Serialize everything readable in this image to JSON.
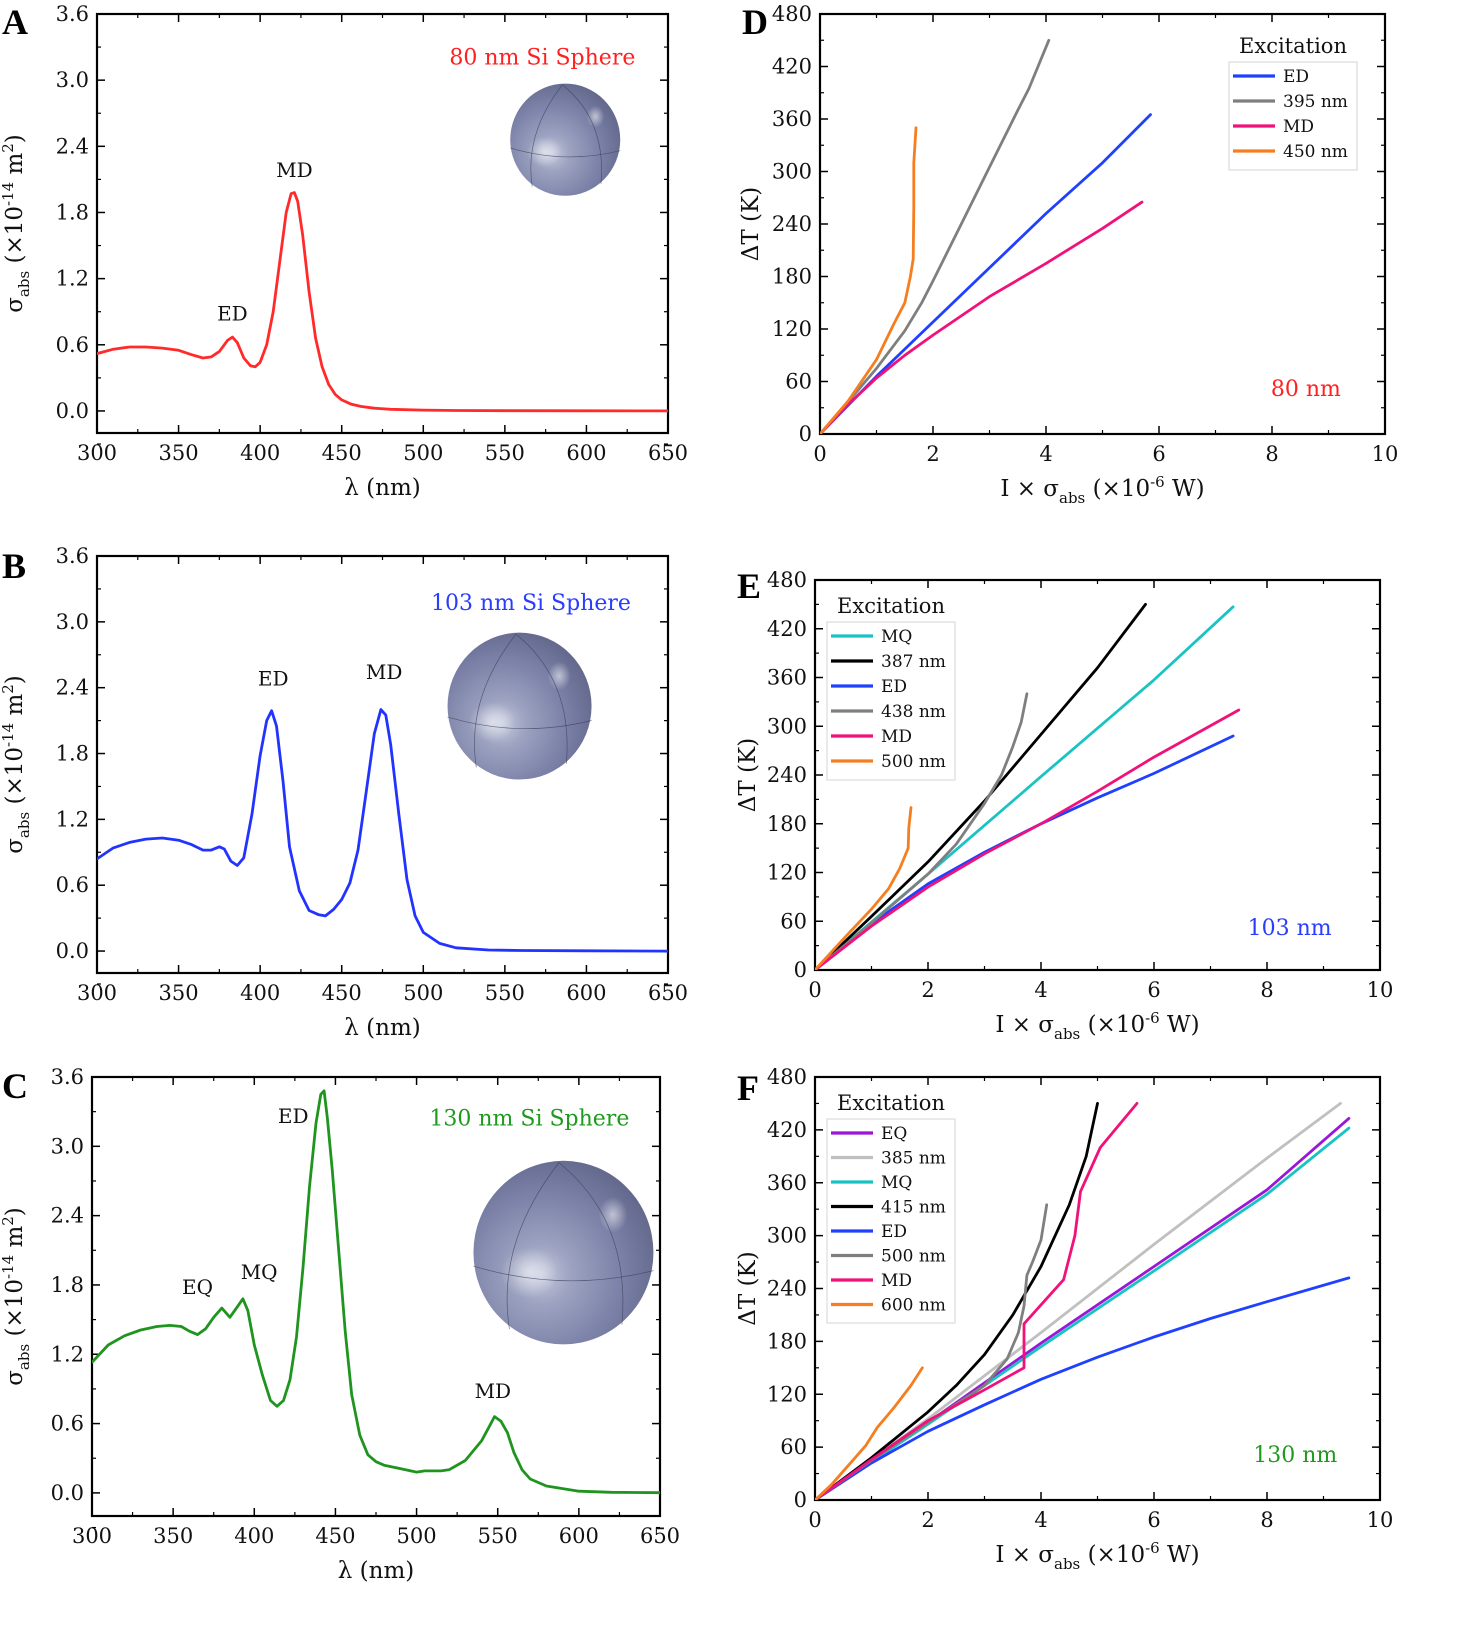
{
  "chart_data": [
    {
      "id": "A",
      "panel_letter": "A",
      "type": "line",
      "title": "80 nm Si Sphere",
      "title_color": "#ff2020",
      "xlabel": "λ (nm)",
      "ylabel": "σ_abs (×10^-14 m^2)",
      "xlim": [
        300,
        650
      ],
      "ylim": [
        -0.2,
        3.6
      ],
      "xticks": [
        300,
        350,
        400,
        450,
        500,
        550,
        600,
        650
      ],
      "yticks": [
        0.0,
        0.6,
        1.2,
        1.8,
        2.4,
        3.0,
        3.6
      ],
      "ytick_format": 1,
      "inset": "sphere",
      "annotations": [
        {
          "text": "ED",
          "x": 383,
          "y": 0.82
        },
        {
          "text": "MD",
          "x": 421,
          "y": 2.12
        }
      ],
      "series": [
        {
          "name": "σ_abs",
          "color": "#ff2a2a",
          "x": [
            300,
            310,
            320,
            330,
            340,
            350,
            358,
            365,
            370,
            375,
            380,
            383,
            386,
            390,
            394,
            397,
            400,
            404,
            408,
            412,
            416,
            419,
            421,
            423,
            426,
            430,
            434,
            438,
            442,
            446,
            450,
            456,
            462,
            470,
            480,
            500,
            520,
            550,
            600,
            650
          ],
          "y": [
            0.52,
            0.56,
            0.58,
            0.58,
            0.57,
            0.55,
            0.51,
            0.48,
            0.49,
            0.54,
            0.64,
            0.67,
            0.62,
            0.48,
            0.41,
            0.4,
            0.44,
            0.6,
            0.9,
            1.35,
            1.8,
            1.97,
            1.98,
            1.9,
            1.6,
            1.08,
            0.66,
            0.4,
            0.24,
            0.15,
            0.1,
            0.06,
            0.04,
            0.025,
            0.015,
            0.008,
            0.004,
            0.002,
            0.001,
            0.0
          ]
        }
      ]
    },
    {
      "id": "B",
      "panel_letter": "B",
      "type": "line",
      "title": "103 nm Si Sphere",
      "title_color": "#2a3cff",
      "xlabel": "λ (nm)",
      "ylabel": "σ_abs (×10^-14 m^2)",
      "xlim": [
        300,
        650
      ],
      "ylim": [
        -0.2,
        3.6
      ],
      "xticks": [
        300,
        350,
        400,
        450,
        500,
        550,
        600,
        650
      ],
      "yticks": [
        0.0,
        0.6,
        1.2,
        1.8,
        2.4,
        3.0,
        3.6
      ],
      "ytick_format": 1,
      "inset": "sphere",
      "annotations": [
        {
          "text": "ED",
          "x": 408,
          "y": 2.42
        },
        {
          "text": "MD",
          "x": 476,
          "y": 2.48
        }
      ],
      "series": [
        {
          "name": "σ_abs",
          "color": "#2233ff",
          "x": [
            300,
            310,
            320,
            330,
            340,
            350,
            358,
            365,
            370,
            375,
            378,
            382,
            386,
            390,
            395,
            400,
            404,
            407,
            410,
            414,
            418,
            424,
            430,
            436,
            440,
            445,
            450,
            455,
            460,
            465,
            470,
            474,
            477,
            480,
            485,
            490,
            495,
            500,
            510,
            520,
            540,
            560,
            600,
            650
          ],
          "y": [
            0.84,
            0.94,
            0.99,
            1.02,
            1.03,
            1.01,
            0.97,
            0.92,
            0.92,
            0.95,
            0.93,
            0.82,
            0.78,
            0.85,
            1.25,
            1.78,
            2.1,
            2.19,
            2.05,
            1.55,
            0.95,
            0.55,
            0.37,
            0.33,
            0.32,
            0.38,
            0.47,
            0.62,
            0.92,
            1.45,
            1.98,
            2.2,
            2.15,
            1.88,
            1.25,
            0.65,
            0.32,
            0.17,
            0.07,
            0.03,
            0.01,
            0.005,
            0.002,
            0.0
          ]
        }
      ]
    },
    {
      "id": "C",
      "panel_letter": "C",
      "type": "line",
      "title": "130 nm Si Sphere",
      "title_color": "#1e9a1e",
      "xlabel": "λ (nm)",
      "ylabel": "σ_abs (×10^-14 m^2)",
      "xlim": [
        300,
        650
      ],
      "ylim": [
        -0.2,
        3.6
      ],
      "xticks": [
        300,
        350,
        400,
        450,
        500,
        550,
        600,
        650
      ],
      "yticks": [
        0.0,
        0.6,
        1.2,
        1.8,
        2.4,
        3.0,
        3.6
      ],
      "ytick_format": 1,
      "inset": "sphere",
      "annotations": [
        {
          "text": "EQ",
          "x": 365,
          "y": 1.72
        },
        {
          "text": "MQ",
          "x": 403,
          "y": 1.85
        },
        {
          "text": "ED",
          "x": 424,
          "y": 3.2
        },
        {
          "text": "MD",
          "x": 547,
          "y": 0.82
        }
      ],
      "series": [
        {
          "name": "σ_abs",
          "color": "#1f941f",
          "x": [
            300,
            310,
            320,
            330,
            340,
            348,
            355,
            360,
            365,
            370,
            375,
            380,
            385,
            390,
            393,
            396,
            400,
            405,
            410,
            414,
            418,
            422,
            426,
            430,
            434,
            438,
            441,
            443,
            445,
            448,
            452,
            456,
            460,
            465,
            470,
            475,
            480,
            490,
            500,
            505,
            510,
            515,
            520,
            530,
            540,
            545,
            548,
            552,
            556,
            560,
            565,
            570,
            580,
            600,
            620,
            650
          ],
          "y": [
            1.13,
            1.28,
            1.36,
            1.41,
            1.44,
            1.45,
            1.44,
            1.4,
            1.37,
            1.42,
            1.52,
            1.6,
            1.52,
            1.62,
            1.68,
            1.58,
            1.28,
            1.02,
            0.8,
            0.75,
            0.8,
            0.98,
            1.35,
            1.95,
            2.65,
            3.2,
            3.45,
            3.48,
            3.25,
            2.8,
            2.1,
            1.4,
            0.85,
            0.5,
            0.33,
            0.27,
            0.24,
            0.21,
            0.18,
            0.19,
            0.19,
            0.19,
            0.2,
            0.28,
            0.45,
            0.58,
            0.66,
            0.62,
            0.52,
            0.35,
            0.2,
            0.12,
            0.06,
            0.015,
            0.005,
            0.002
          ]
        }
      ]
    },
    {
      "id": "D",
      "panel_letter": "D",
      "type": "line",
      "title": "80 nm",
      "title_color": "#ff2020",
      "xlabel": "I × σ_abs (×10^-6 W)",
      "ylabel": "ΔT (K)",
      "xlim": [
        0,
        10
      ],
      "ylim": [
        0,
        480
      ],
      "xticks": [
        0,
        2,
        4,
        6,
        8,
        10
      ],
      "yticks": [
        0,
        60,
        120,
        180,
        240,
        300,
        360,
        420,
        480
      ],
      "ytick_format": 0,
      "legend": {
        "title": "Excitation",
        "position": "top-right"
      },
      "series": [
        {
          "name": "ED",
          "color": "#2040ff",
          "x": [
            0,
            1,
            2,
            3,
            4,
            5,
            5.85
          ],
          "y": [
            0,
            66,
            128,
            190,
            252,
            310,
            365
          ]
        },
        {
          "name": "395 nm",
          "color": "#7f7f7f",
          "x": [
            0,
            0.5,
            1,
            1.5,
            1.8,
            2.0,
            2.5,
            3.0,
            3.5,
            3.7,
            4.05
          ],
          "y": [
            0,
            37,
            75,
            118,
            150,
            175,
            240,
            305,
            370,
            395,
            450
          ]
        },
        {
          "name": "MD",
          "color": "#f0127a",
          "x": [
            0,
            0.5,
            1,
            1.5,
            2,
            3,
            4,
            5,
            5.7
          ],
          "y": [
            0,
            34,
            64,
            90,
            113,
            157,
            195,
            235,
            265
          ]
        },
        {
          "name": "450 nm",
          "color": "#f47e20",
          "x": [
            0,
            0.5,
            1.0,
            1.3,
            1.5,
            1.6,
            1.65,
            1.66,
            1.66,
            1.7
          ],
          "y": [
            0,
            38,
            85,
            125,
            150,
            180,
            200,
            260,
            310,
            350
          ]
        }
      ]
    },
    {
      "id": "E",
      "panel_letter": "E",
      "type": "line",
      "title": "103 nm",
      "title_color": "#2a3cff",
      "xlabel": "I × σ_abs (×10^-6 W)",
      "ylabel": "ΔT (K)",
      "xlim": [
        0,
        10
      ],
      "ylim": [
        0,
        480
      ],
      "xticks": [
        0,
        2,
        4,
        6,
        8,
        10
      ],
      "yticks": [
        0,
        60,
        120,
        180,
        240,
        300,
        360,
        420,
        480
      ],
      "ytick_format": 0,
      "legend": {
        "title": "Excitation",
        "position": "top-left"
      },
      "series": [
        {
          "name": "MQ",
          "color": "#19c3c3",
          "x": [
            0,
            2,
            4,
            6,
            7.4
          ],
          "y": [
            0,
            118,
            238,
            357,
            447
          ]
        },
        {
          "name": "387 nm",
          "color": "#000000",
          "x": [
            0,
            1,
            2,
            3,
            4,
            5,
            5.85
          ],
          "y": [
            0,
            66,
            133,
            208,
            290,
            372,
            450
          ]
        },
        {
          "name": "ED",
          "color": "#2040ff",
          "x": [
            0,
            1,
            2,
            3,
            4,
            5,
            6,
            7.4
          ],
          "y": [
            0,
            57,
            106,
            145,
            180,
            212,
            242,
            288
          ]
        },
        {
          "name": "438 nm",
          "color": "#7f7f7f",
          "x": [
            0,
            1,
            2,
            2.5,
            3.0,
            3.3,
            3.5,
            3.65,
            3.75
          ],
          "y": [
            0,
            58,
            118,
            155,
            205,
            240,
            275,
            305,
            340
          ]
        },
        {
          "name": "MD",
          "color": "#f0127a",
          "x": [
            0,
            1,
            2,
            3,
            4,
            5,
            6,
            7.5
          ],
          "y": [
            0,
            54,
            102,
            143,
            180,
            220,
            262,
            320
          ]
        },
        {
          "name": "500 nm",
          "color": "#f47e20",
          "x": [
            0,
            0.5,
            1.0,
            1.3,
            1.5,
            1.65,
            1.66,
            1.7
          ],
          "y": [
            0,
            38,
            75,
            100,
            125,
            150,
            175,
            200
          ]
        }
      ]
    },
    {
      "id": "F",
      "panel_letter": "F",
      "type": "line",
      "title": "130 nm",
      "title_color": "#1e9a1e",
      "xlabel": "I × σ_abs (×10^-6 W)",
      "ylabel": "ΔT (K)",
      "xlim": [
        0,
        10
      ],
      "ylim": [
        0,
        480
      ],
      "xticks": [
        0,
        2,
        4,
        6,
        8,
        10
      ],
      "yticks": [
        0,
        60,
        120,
        180,
        240,
        300,
        360,
        420,
        480
      ],
      "ytick_format": 0,
      "legend": {
        "title": "Excitation",
        "position": "top-left"
      },
      "series": [
        {
          "name": "EQ",
          "color": "#9b16d6",
          "x": [
            0,
            2,
            4,
            6,
            8,
            9.45
          ],
          "y": [
            0,
            88,
            178,
            265,
            352,
            433
          ]
        },
        {
          "name": "385 nm",
          "color": "#c0c0c0",
          "x": [
            0,
            2,
            4,
            6,
            8,
            9.3
          ],
          "y": [
            0,
            92,
            190,
            290,
            388,
            450
          ]
        },
        {
          "name": "MQ",
          "color": "#19c3c3",
          "x": [
            0,
            2,
            4,
            6,
            8,
            9.45
          ],
          "y": [
            0,
            86,
            174,
            260,
            347,
            422
          ]
        },
        {
          "name": "415 nm",
          "color": "#000000",
          "x": [
            0,
            1,
            2,
            2.5,
            3,
            3.5,
            4,
            4.5,
            4.8,
            5.0
          ],
          "y": [
            0,
            48,
            100,
            130,
            165,
            210,
            265,
            335,
            390,
            450
          ]
        },
        {
          "name": "ED",
          "color": "#2040ff",
          "x": [
            0,
            1,
            2,
            3,
            4,
            5,
            6,
            7,
            8,
            9.45
          ],
          "y": [
            0,
            42,
            78,
            108,
            137,
            162,
            185,
            206,
            225,
            252
          ]
        },
        {
          "name": "500 nm",
          "color": "#7f7f7f",
          "x": [
            0,
            1,
            2,
            3,
            3.4,
            3.6,
            3.7,
            3.75,
            3.85,
            4.0,
            4.1
          ],
          "y": [
            0,
            45,
            88,
            130,
            160,
            190,
            220,
            255,
            270,
            295,
            335
          ]
        },
        {
          "name": "MD",
          "color": "#f0127a",
          "x": [
            0,
            1,
            2,
            3,
            3.7,
            3.7,
            4.4,
            4.6,
            4.7,
            5.05,
            5.7
          ],
          "y": [
            0,
            46,
            90,
            125,
            150,
            200,
            250,
            300,
            350,
            400,
            450
          ]
        },
        {
          "name": "600 nm",
          "color": "#f47e20",
          "x": [
            0,
            0.3,
            0.6,
            0.9,
            1.1,
            1.4,
            1.7,
            1.9
          ],
          "y": [
            0,
            18,
            40,
            62,
            82,
            105,
            130,
            150
          ]
        }
      ]
    }
  ]
}
